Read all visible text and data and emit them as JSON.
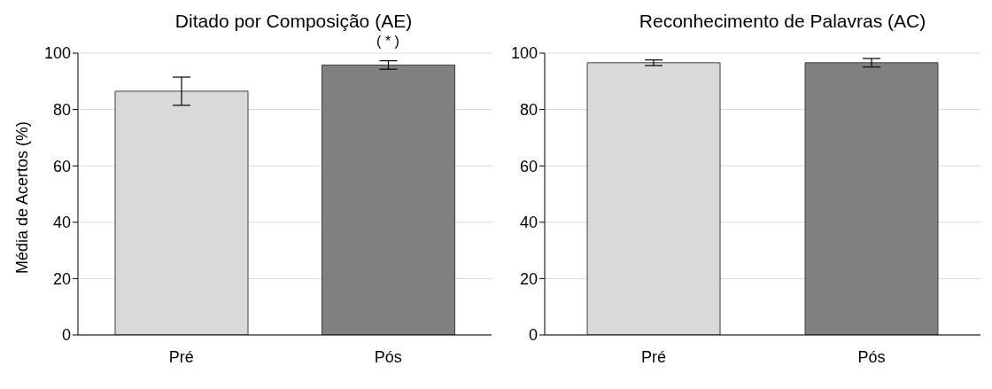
{
  "chart_data": [
    {
      "type": "bar",
      "title": "Ditado por Composição (AE)",
      "ylabel": "Média de Acertos (%)",
      "categories": [
        "Pré",
        "Pós"
      ],
      "values": [
        86.5,
        95.8
      ],
      "errors": [
        5,
        1.5
      ],
      "colors": [
        "#d9d9d9",
        "#808080"
      ],
      "ylim": [
        0,
        100
      ],
      "yticks": [
        0,
        20,
        40,
        60,
        80,
        100
      ],
      "grid": "y",
      "annotations": [
        "( * )"
      ]
    },
    {
      "type": "bar",
      "title": "Reconhecimento de Palavras (AC)",
      "categories": [
        "Pré",
        "Pós"
      ],
      "values": [
        96.6,
        96.6
      ],
      "errors": [
        1,
        1.5
      ],
      "colors": [
        "#d9d9d9",
        "#808080"
      ],
      "ylim": [
        0,
        100
      ],
      "yticks": [
        0,
        20,
        40,
        60,
        80,
        100
      ],
      "grid": "y"
    }
  ]
}
